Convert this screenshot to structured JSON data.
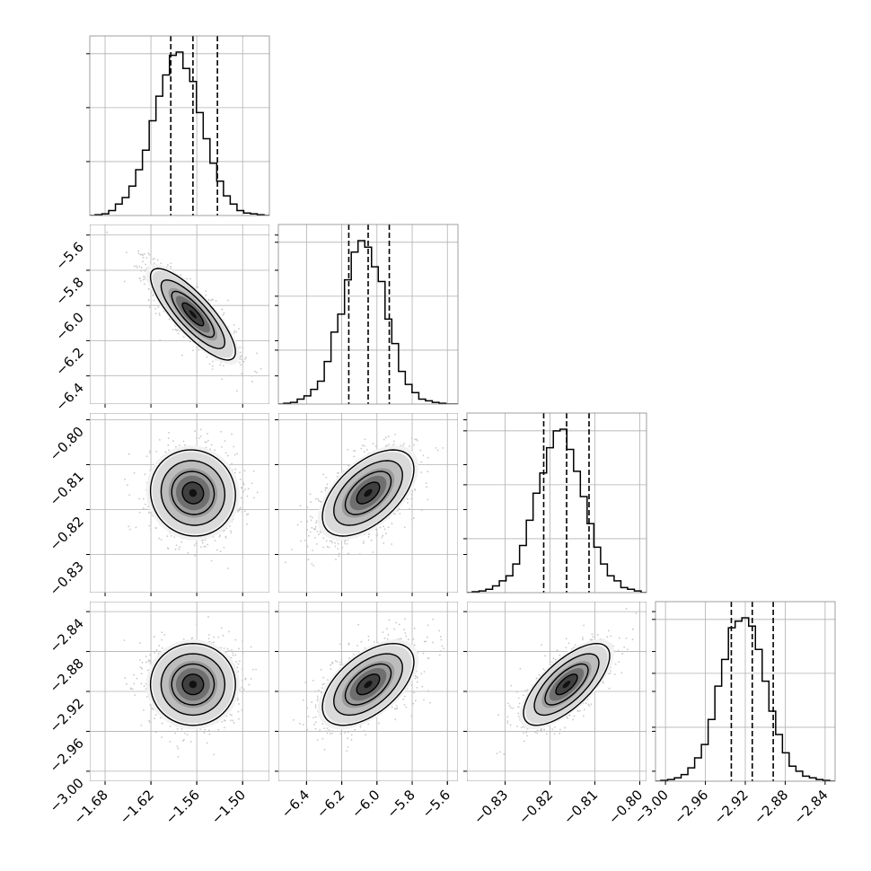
{
  "chart_data": {
    "type": "corner",
    "parameters": [
      {
        "ticks": [
          -1.68,
          -1.62,
          -1.56,
          -1.5
        ],
        "tick_labels": [
          "−1.68",
          "−1.62",
          "−1.56",
          "−1.50"
        ],
        "range": [
          -1.7,
          -1.465
        ],
        "quantiles": [
          -1.594,
          -1.565,
          -1.533
        ],
        "histogram": [
          0.005,
          0.01,
          0.03,
          0.07,
          0.11,
          0.18,
          0.28,
          0.4,
          0.58,
          0.73,
          0.86,
          0.98,
          1.0,
          0.9,
          0.82,
          0.63,
          0.47,
          0.32,
          0.21,
          0.12,
          0.07,
          0.03,
          0.015,
          0.01,
          0.005
        ]
      },
      {
        "ticks": [
          -6.4,
          -6.2,
          -6.0,
          -5.8,
          -5.6
        ],
        "tick_labels": [
          "−6.4",
          "−6.2",
          "−6.0",
          "−5.8",
          "−5.6"
        ],
        "range": [
          -6.56,
          -5.54
        ],
        "quantiles": [
          -6.16,
          -6.05,
          -5.93
        ],
        "histogram": [
          0.005,
          0.01,
          0.03,
          0.05,
          0.09,
          0.14,
          0.26,
          0.44,
          0.55,
          0.76,
          0.93,
          1.0,
          0.96,
          0.84,
          0.75,
          0.52,
          0.37,
          0.2,
          0.12,
          0.07,
          0.03,
          0.02,
          0.01,
          0.005,
          0.0
        ]
      },
      {
        "ticks": [
          -0.83,
          -0.82,
          -0.81,
          -0.8
        ],
        "tick_labels": [
          "−0.83",
          "−0.82",
          "−0.81",
          "−0.80"
        ],
        "range": [
          -0.8385,
          -0.7985
        ],
        "quantiles": [
          -0.8214,
          -0.8163,
          -0.8113
        ],
        "histogram": [
          0.005,
          0.01,
          0.02,
          0.04,
          0.07,
          0.1,
          0.17,
          0.28,
          0.43,
          0.59,
          0.71,
          0.86,
          0.96,
          0.97,
          0.85,
          0.72,
          0.57,
          0.41,
          0.27,
          0.17,
          0.1,
          0.07,
          0.03,
          0.02,
          0.01
        ]
      },
      {
        "ticks": [
          -3.0,
          -2.96,
          -2.92,
          -2.88,
          -2.84
        ],
        "tick_labels": [
          "−3.00",
          "−2.96",
          "−2.92",
          "−2.88",
          "−2.84"
        ],
        "range": [
          -3.01,
          -2.83
        ],
        "quantiles": [
          -2.934,
          -2.913,
          -2.892
        ],
        "histogram": [
          0.005,
          0.01,
          0.02,
          0.04,
          0.08,
          0.14,
          0.22,
          0.37,
          0.57,
          0.73,
          0.92,
          0.96,
          0.98,
          0.93,
          0.79,
          0.6,
          0.42,
          0.28,
          0.17,
          0.09,
          0.06,
          0.03,
          0.02,
          0.01,
          0.005
        ]
      }
    ],
    "pairs": [
      {
        "x": 0,
        "y": 1,
        "center": [
          -1.565,
          -6.05
        ],
        "sigma": [
          0.0278,
          0.13
        ],
        "rho": -0.82
      },
      {
        "x": 0,
        "y": 2,
        "center": [
          -1.565,
          -0.8163
        ],
        "sigma": [
          0.0278,
          0.0048
        ],
        "rho": -0.05
      },
      {
        "x": 1,
        "y": 2,
        "center": [
          -6.05,
          -0.8163
        ],
        "sigma": [
          0.13,
          0.0048
        ],
        "rho": 0.55
      },
      {
        "x": 0,
        "y": 3,
        "center": [
          -1.565,
          -2.913
        ],
        "sigma": [
          0.0278,
          0.0205
        ],
        "rho": 0.0
      },
      {
        "x": 1,
        "y": 3,
        "center": [
          -6.05,
          -2.913
        ],
        "sigma": [
          0.13,
          0.0205
        ],
        "rho": 0.55
      },
      {
        "x": 2,
        "y": 3,
        "center": [
          -0.8163,
          -2.913
        ],
        "sigma": [
          0.0048,
          0.0205
        ],
        "rho": 0.7
      }
    ],
    "contour_levels": [
      0.5,
      1.0,
      1.5,
      2.0
    ],
    "grid": true,
    "colors": {
      "line": "#000000",
      "grid": "#b0b0b0",
      "points": "#c8c8c8",
      "frame": "#888888"
    }
  }
}
